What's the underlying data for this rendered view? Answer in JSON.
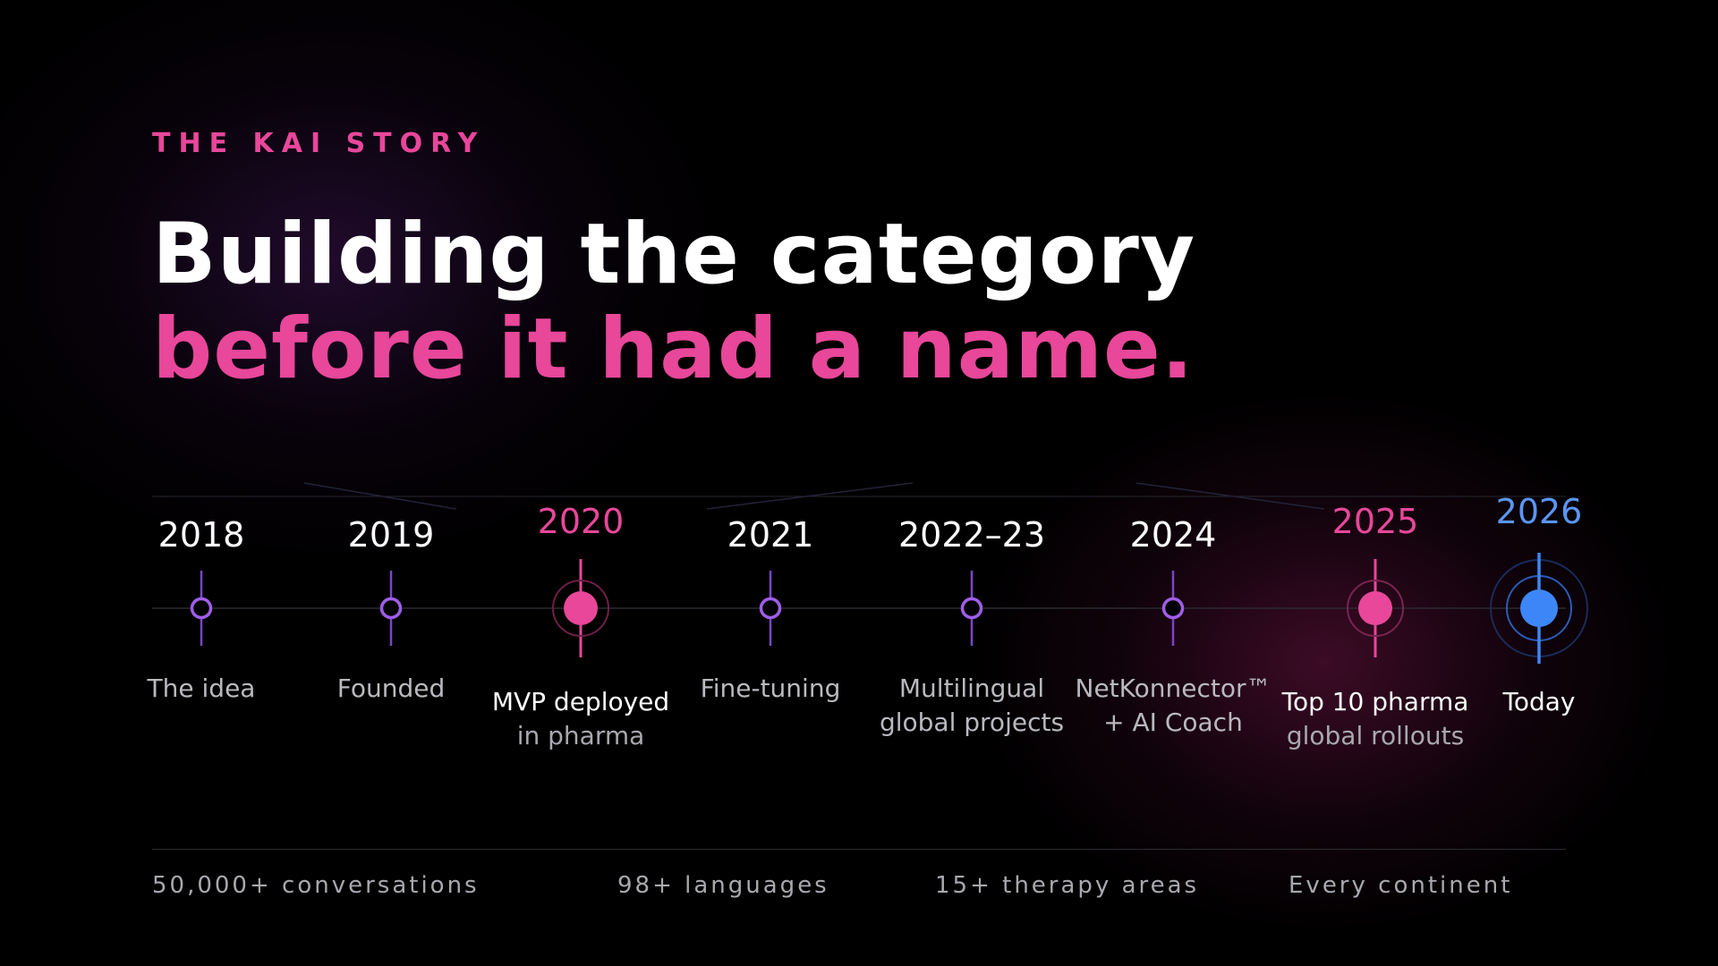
{
  "eyebrow": "THE KAI STORY",
  "headline": {
    "line1": "Building the category",
    "line2": "before it had a name."
  },
  "colors": {
    "accent_pink": "#e8479a",
    "accent_purple": "#a05ee8",
    "accent_blue": "#3d86f7",
    "background": "#000000"
  },
  "timeline": [
    {
      "year": "2018",
      "label": "The idea",
      "style": "normal"
    },
    {
      "year": "2019",
      "label": "Founded",
      "style": "normal"
    },
    {
      "year": "2020",
      "label_main": "MVP deployed",
      "label_sub": "in pharma",
      "style": "highlight-pink"
    },
    {
      "year": "2021",
      "label": "Fine-tuning",
      "style": "normal"
    },
    {
      "year": "2022–23",
      "label_line1": "Multilingual",
      "label_line2": "global projects",
      "style": "normal"
    },
    {
      "year": "2024",
      "label_line1": "NetKonnector™",
      "label_line2": "+ AI Coach",
      "style": "normal"
    },
    {
      "year": "2025",
      "label_main": "Top 10 pharma",
      "label_sub": "global rollouts",
      "style": "highlight-pink"
    },
    {
      "year": "2026",
      "label_main": "Today",
      "style": "highlight-blue"
    }
  ],
  "stats": [
    "50,000+ conversations",
    "98+ languages",
    "15+ therapy areas",
    "Every continent"
  ]
}
